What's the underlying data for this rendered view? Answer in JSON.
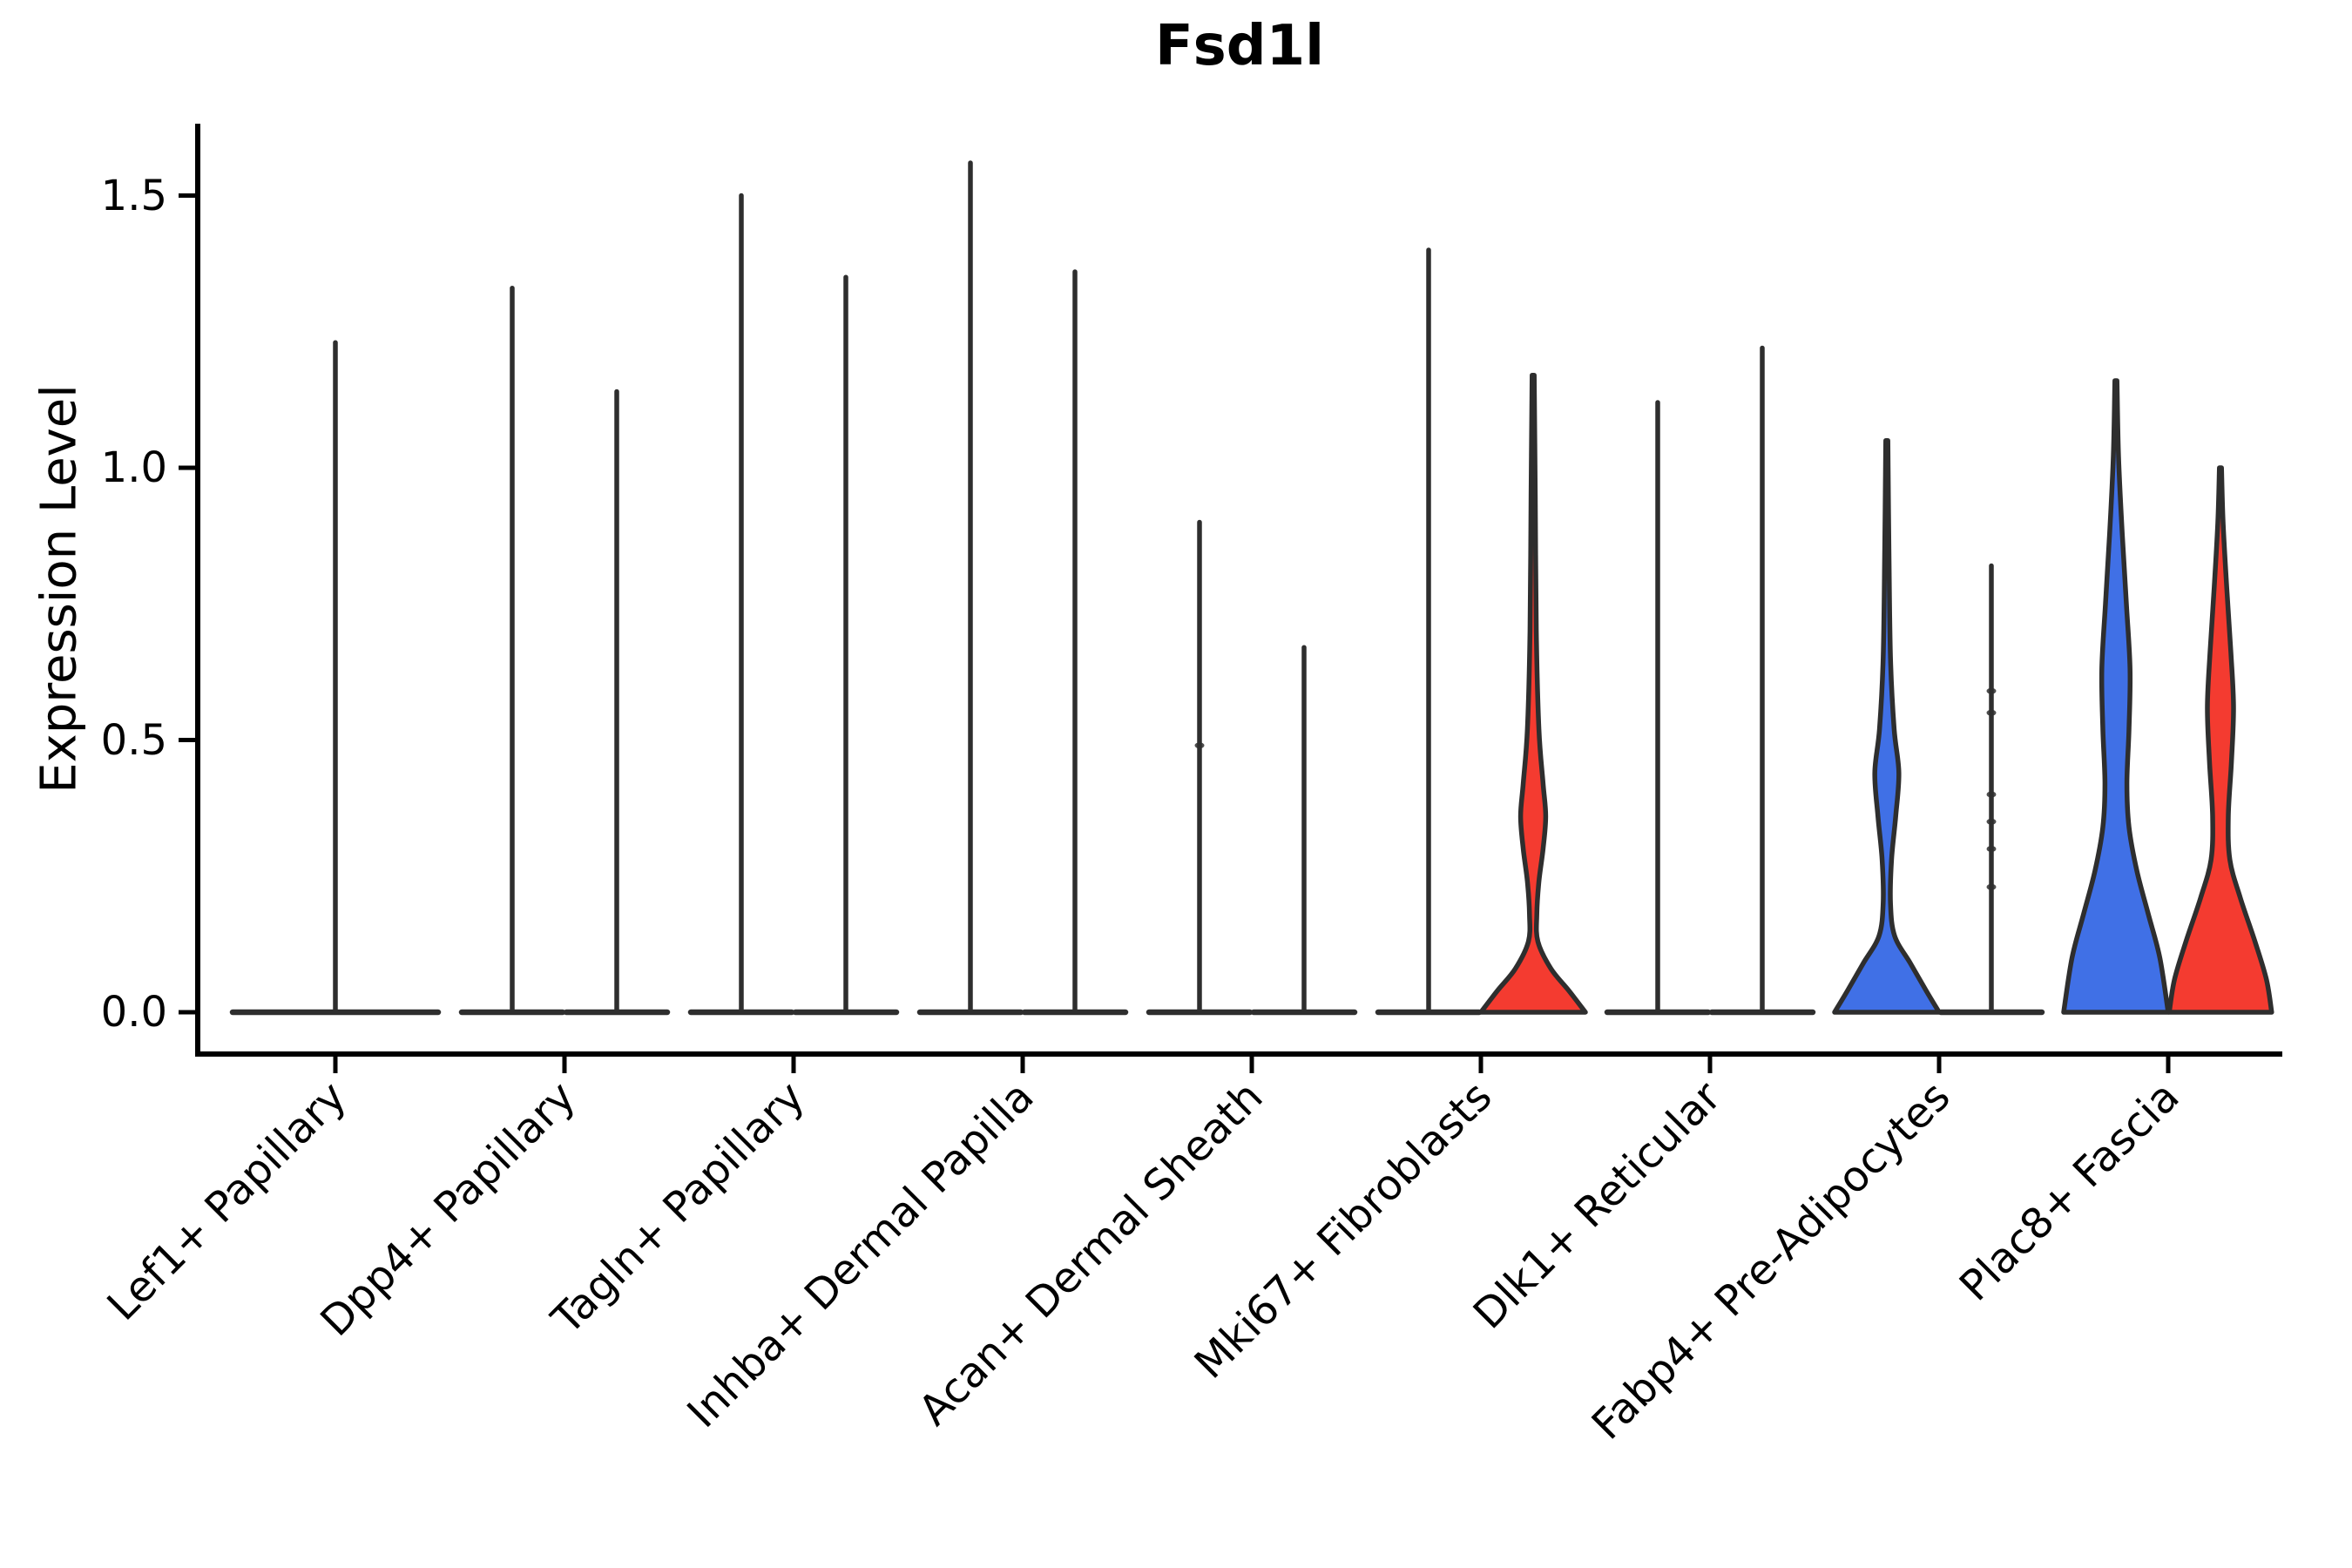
{
  "title": "Fsd1l",
  "y_axis": {
    "label": "Expression Level",
    "tick_labels": [
      "0.0",
      "0.5",
      "1.0",
      "1.5"
    ]
  },
  "colors": {
    "left_violin": "#4070E6",
    "right_violin": "#F43B30",
    "outline": "#2E2E2E",
    "axis": "#000000",
    "background": "#FFFFFF"
  },
  "chart_data": {
    "type": "violin",
    "title": "Fsd1l",
    "xlabel": "",
    "ylabel": "Expression Level",
    "ylim": [
      -0.08,
      1.63
    ],
    "y_ticks": [
      0.0,
      0.5,
      1.0,
      1.5
    ],
    "legend": "none",
    "grid": false,
    "hue_note": "two violins per category: left=blue, right=red; first category shows a single centered violin",
    "categories": [
      "Lef1+ Papillary",
      "Dpp4+ Papillary",
      "Tagln+ Papillary",
      "Inhba+ Dermal Papilla",
      "Acan+ Dermal Sheath",
      "Mki67+ Fibroblasts",
      "Dlk1+ Reticular",
      "Fabp4+ Pre-Adipocytes",
      "Plac8+ Fascia"
    ],
    "groups": [
      {
        "category": "Lef1+ Papillary",
        "violins": [
          {
            "hue": "single",
            "color": "#4070E6",
            "max": 1.23,
            "profile": null,
            "jitter": []
          }
        ]
      },
      {
        "category": "Dpp4+ Papillary",
        "violins": [
          {
            "hue": "left",
            "color": "#4070E6",
            "max": 1.33,
            "profile": null,
            "jitter": []
          },
          {
            "hue": "right",
            "color": "#F43B30",
            "max": 1.14,
            "profile": null,
            "jitter": []
          }
        ]
      },
      {
        "category": "Tagln+ Papillary",
        "violins": [
          {
            "hue": "left",
            "color": "#4070E6",
            "max": 1.5,
            "profile": null,
            "jitter": []
          },
          {
            "hue": "right",
            "color": "#F43B30",
            "max": 1.35,
            "profile": null,
            "jitter": []
          }
        ]
      },
      {
        "category": "Inhba+ Dermal Papilla",
        "violins": [
          {
            "hue": "left",
            "color": "#4070E6",
            "max": 1.56,
            "profile": null,
            "jitter": []
          },
          {
            "hue": "right",
            "color": "#F43B30",
            "max": 1.36,
            "profile": null,
            "jitter": []
          }
        ]
      },
      {
        "category": "Acan+ Dermal Sheath",
        "violins": [
          {
            "hue": "left",
            "color": "#4070E6",
            "max": 0.9,
            "profile": null,
            "jitter": [
              0.49
            ]
          },
          {
            "hue": "right",
            "color": "#F43B30",
            "max": 0.67,
            "profile": null,
            "jitter": []
          }
        ]
      },
      {
        "category": "Mki67+ Fibroblasts",
        "violins": [
          {
            "hue": "left",
            "color": "#4070E6",
            "max": 1.4,
            "profile": null,
            "jitter": []
          },
          {
            "hue": "right",
            "color": "#F43B30",
            "max": 1.17,
            "profile": [
              [
                1.17,
                0.02
              ],
              [
                0.95,
                0.04
              ],
              [
                0.7,
                0.06
              ],
              [
                0.52,
                0.11
              ],
              [
                0.42,
                0.19
              ],
              [
                0.36,
                0.24
              ],
              [
                0.3,
                0.19
              ],
              [
                0.24,
                0.11
              ],
              [
                0.18,
                0.07
              ],
              [
                0.13,
                0.09
              ],
              [
                0.08,
                0.34
              ],
              [
                0.04,
                0.68
              ],
              [
                0.0,
                1.0
              ]
            ],
            "jitter": []
          }
        ]
      },
      {
        "category": "Dlk1+ Reticular",
        "violins": [
          {
            "hue": "left",
            "color": "#4070E6",
            "max": 1.12,
            "profile": null,
            "jitter": []
          },
          {
            "hue": "right",
            "color": "#F43B30",
            "max": 1.22,
            "profile": null,
            "jitter": []
          }
        ]
      },
      {
        "category": "Fabp4+ Pre-Adipocytes",
        "violins": [
          {
            "hue": "left",
            "color": "#4070E6",
            "max": 1.05,
            "profile": [
              [
                1.05,
                0.02
              ],
              [
                0.85,
                0.04
              ],
              [
                0.65,
                0.07
              ],
              [
                0.52,
                0.14
              ],
              [
                0.44,
                0.23
              ],
              [
                0.36,
                0.17
              ],
              [
                0.28,
                0.09
              ],
              [
                0.2,
                0.07
              ],
              [
                0.14,
                0.15
              ],
              [
                0.09,
                0.45
              ],
              [
                0.04,
                0.75
              ],
              [
                0.0,
                1.0
              ]
            ],
            "jitter": []
          },
          {
            "hue": "right",
            "color": "#F43B30",
            "max": 0.82,
            "profile": null,
            "jitter": [
              0.59,
              0.55,
              0.4,
              0.35,
              0.3,
              0.23
            ]
          }
        ]
      },
      {
        "category": "Plac8+ Fascia",
        "violins": [
          {
            "hue": "left",
            "color": "#4070E6",
            "max": 1.16,
            "profile": [
              [
                1.16,
                0.02
              ],
              [
                1.02,
                0.05
              ],
              [
                0.88,
                0.12
              ],
              [
                0.75,
                0.2
              ],
              [
                0.63,
                0.27
              ],
              [
                0.52,
                0.25
              ],
              [
                0.42,
                0.21
              ],
              [
                0.34,
                0.25
              ],
              [
                0.26,
                0.4
              ],
              [
                0.18,
                0.62
              ],
              [
                0.1,
                0.84
              ],
              [
                0.0,
                1.0
              ]
            ],
            "jitter": []
          },
          {
            "hue": "right",
            "color": "#F43B30",
            "max": 1.0,
            "profile": [
              [
                1.0,
                0.02
              ],
              [
                0.9,
                0.05
              ],
              [
                0.78,
                0.12
              ],
              [
                0.66,
                0.2
              ],
              [
                0.56,
                0.25
              ],
              [
                0.46,
                0.21
              ],
              [
                0.36,
                0.15
              ],
              [
                0.28,
                0.18
              ],
              [
                0.21,
                0.38
              ],
              [
                0.13,
                0.66
              ],
              [
                0.06,
                0.88
              ],
              [
                0.0,
                0.98
              ]
            ],
            "jitter": []
          }
        ]
      }
    ]
  }
}
